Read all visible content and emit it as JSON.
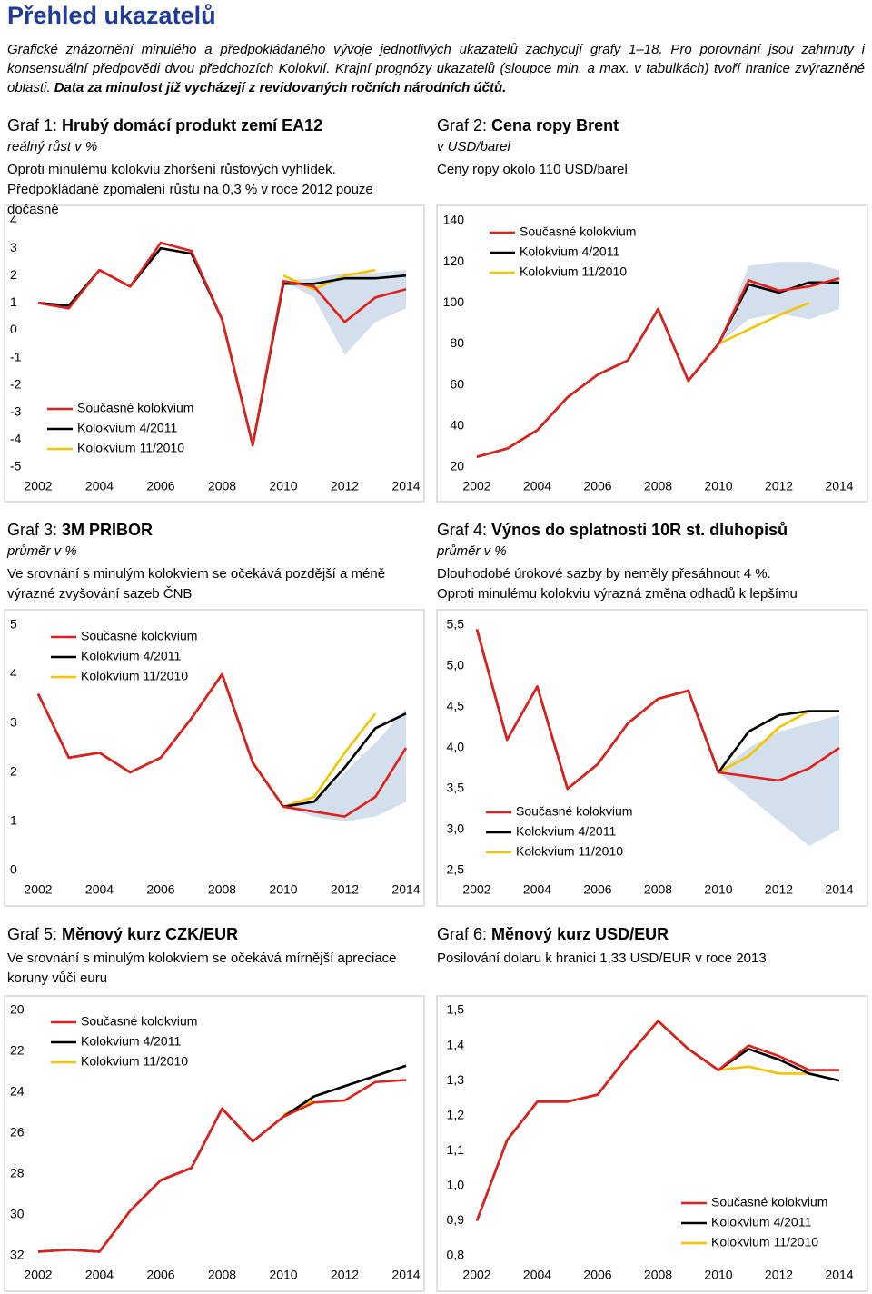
{
  "header": {
    "title": "Přehled ukazatelů",
    "intro": [
      {
        "style": "italic",
        "text": "Grafické znázornění minulého a předpokládaného vývoje jednotlivých ukazatelů zachycují grafy 1–18. Pro porovnání jsou zahrnuty i konsensuální předpovědi dvou předchozích Kolokvií. Krajní prognózy ukazatelů (sloupce min. a max. v tabulkách) tvoří hranice zvýrazněné oblasti. "
      },
      {
        "style": "bold-italic",
        "text": "Data za minulost již vycházejí z revidovaných ročních národních účtů."
      }
    ]
  },
  "chart_data": [
    {
      "type": "line",
      "label": "Graf 1:",
      "title": "Hrubý domácí produkt zemí EA12",
      "subtitle": "reálný růst v %",
      "note": [
        "Oproti minulému kolokviu zhoršení růstových vyhlídek.",
        "Předpokládané zpomalení růstu na 0,3 % v roce 2012 pouze dočasné"
      ],
      "x": [
        2002,
        2003,
        2004,
        2005,
        2006,
        2007,
        2008,
        2009,
        2010,
        2011,
        2012,
        2013,
        2014
      ],
      "xlim": [
        2002,
        2014
      ],
      "xticks": [
        2002,
        2004,
        2006,
        2008,
        2010,
        2012,
        2014
      ],
      "ylim": [
        -5,
        4
      ],
      "yticks": [
        -5,
        -4,
        -3,
        -2,
        -1,
        0,
        1,
        2,
        3,
        4
      ],
      "inverted": false,
      "grid": false,
      "legend": "lower left",
      "band": {
        "color": "#d3dfec",
        "lower": [
          null,
          null,
          null,
          null,
          null,
          null,
          null,
          null,
          1.8,
          1.2,
          -0.9,
          0.3,
          0.8
        ],
        "upper": [
          null,
          null,
          null,
          null,
          null,
          null,
          null,
          null,
          1.8,
          1.9,
          2.1,
          2.1,
          2.2
        ]
      },
      "series": [
        {
          "name": "Současné kolokvium",
          "color": "#e0201b",
          "values": [
            1.0,
            0.8,
            2.2,
            1.6,
            3.2,
            2.9,
            0.4,
            -4.2,
            1.8,
            1.6,
            0.3,
            1.2,
            1.5
          ]
        },
        {
          "name": "Kolokvium 4/2011",
          "color": "#000000",
          "values": [
            1.0,
            0.9,
            2.2,
            1.6,
            3.0,
            2.8,
            0.4,
            -4.2,
            1.7,
            1.7,
            1.9,
            1.9,
            2.0
          ]
        },
        {
          "name": "Kolokvium 11/2010",
          "color": "#f5c400",
          "values": [
            null,
            null,
            null,
            null,
            null,
            null,
            null,
            null,
            2.0,
            1.5,
            2.0,
            2.2,
            null
          ]
        }
      ]
    },
    {
      "type": "line",
      "label": "Graf 2:",
      "title": "Cena ropy Brent",
      "subtitle": "v USD/barel",
      "note": [
        "Ceny ropy okolo 110 USD/barel"
      ],
      "x": [
        2002,
        2003,
        2004,
        2005,
        2006,
        2007,
        2008,
        2009,
        2010,
        2011,
        2012,
        2013,
        2014
      ],
      "xlim": [
        2002,
        2014
      ],
      "xticks": [
        2002,
        2004,
        2006,
        2008,
        2010,
        2012,
        2014
      ],
      "ylim": [
        20,
        140
      ],
      "yticks": [
        20,
        40,
        60,
        80,
        100,
        120,
        140
      ],
      "inverted": false,
      "grid": false,
      "legend": "upper left",
      "band": {
        "color": "#d3dfec",
        "lower": [
          null,
          null,
          null,
          null,
          null,
          null,
          null,
          null,
          80,
          92,
          95,
          92,
          97
        ],
        "upper": [
          null,
          null,
          null,
          null,
          null,
          null,
          null,
          null,
          80,
          118,
          120,
          120,
          116
        ]
      },
      "series": [
        {
          "name": "Současné kolokvium",
          "color": "#e0201b",
          "values": [
            25,
            29,
            38,
            54,
            65,
            72,
            97,
            62,
            80,
            111,
            106,
            108,
            112
          ]
        },
        {
          "name": "Kolokvium 4/2011",
          "color": "#000000",
          "values": [
            25,
            29,
            38,
            54,
            65,
            72,
            97,
            62,
            80,
            109,
            105,
            110,
            110
          ]
        },
        {
          "name": "Kolokvium 11/2010",
          "color": "#f5c400",
          "values": [
            null,
            null,
            null,
            null,
            null,
            null,
            null,
            null,
            80,
            87,
            94,
            100,
            null
          ]
        }
      ]
    },
    {
      "type": "line",
      "label": "Graf 3:",
      "title": "3M PRIBOR",
      "subtitle": "průměr v %",
      "note": [
        "Ve srovnání s minulým kolokviem se očekává pozdější a méně",
        "výrazné zvyšování sazeb ČNB"
      ],
      "x": [
        2002,
        2003,
        2004,
        2005,
        2006,
        2007,
        2008,
        2009,
        2010,
        2011,
        2012,
        2013,
        2014
      ],
      "xlim": [
        2002,
        2014
      ],
      "xticks": [
        2002,
        2004,
        2006,
        2008,
        2010,
        2012,
        2014
      ],
      "ylim": [
        0,
        5
      ],
      "yticks": [
        0,
        1,
        2,
        3,
        4,
        5
      ],
      "inverted": false,
      "grid": false,
      "legend": "upper left",
      "band": {
        "color": "#d3dfec",
        "lower": [
          null,
          null,
          null,
          null,
          null,
          null,
          null,
          null,
          1.3,
          1.1,
          1.0,
          1.1,
          1.4
        ],
        "upper": [
          null,
          null,
          null,
          null,
          null,
          null,
          null,
          null,
          1.3,
          1.4,
          2.0,
          2.6,
          3.3
        ]
      },
      "series": [
        {
          "name": "Současné kolokvium",
          "color": "#e0201b",
          "values": [
            3.6,
            2.3,
            2.4,
            2.0,
            2.3,
            3.1,
            4.0,
            2.2,
            1.3,
            1.2,
            1.1,
            1.5,
            2.5
          ]
        },
        {
          "name": "Kolokvium 4/2011",
          "color": "#000000",
          "values": [
            3.6,
            2.3,
            2.4,
            2.0,
            2.3,
            3.1,
            4.0,
            2.2,
            1.3,
            1.4,
            2.1,
            2.9,
            3.2
          ]
        },
        {
          "name": "Kolokvium 11/2010",
          "color": "#f5c400",
          "values": [
            null,
            null,
            null,
            null,
            null,
            null,
            null,
            null,
            1.3,
            1.5,
            2.4,
            3.2,
            null
          ]
        }
      ]
    },
    {
      "type": "line",
      "label": "Graf 4:",
      "title": "Výnos do splatnosti 10R st. dluhopisů",
      "subtitle": "průměr v %",
      "note": [
        "Dlouhodobé úrokové sazby by neměly přesáhnout 4 %.",
        "Oproti minulému kolokviu výrazná změna odhadů k lepšímu"
      ],
      "x": [
        2002,
        2003,
        2004,
        2005,
        2006,
        2007,
        2008,
        2009,
        2010,
        2011,
        2012,
        2013,
        2014
      ],
      "xlim": [
        2002,
        2014
      ],
      "xticks": [
        2002,
        2004,
        2006,
        2008,
        2010,
        2012,
        2014
      ],
      "ylim": [
        2.5,
        5.5
      ],
      "yticks": [
        {
          "value": 2.5,
          "label": "2,5"
        },
        {
          "value": 3,
          "label": "3,0"
        },
        {
          "value": 3.5,
          "label": "3,5"
        },
        {
          "value": 4,
          "label": "4,0"
        },
        {
          "value": 4.5,
          "label": "4,5"
        },
        {
          "value": 5,
          "label": "5,0"
        },
        {
          "value": 5.5,
          "label": "5,5"
        }
      ],
      "inverted": false,
      "grid": false,
      "legend": "lower left",
      "band": {
        "color": "#d3dfec",
        "lower": [
          null,
          null,
          null,
          null,
          null,
          null,
          null,
          null,
          3.7,
          3.4,
          3.1,
          2.8,
          3.0
        ],
        "upper": [
          null,
          null,
          null,
          null,
          null,
          null,
          null,
          null,
          3.7,
          4.0,
          4.2,
          4.3,
          4.4
        ]
      },
      "series": [
        {
          "name": "Současné kolokvium",
          "color": "#e0201b",
          "values": [
            5.45,
            4.1,
            4.75,
            3.5,
            3.8,
            4.3,
            4.6,
            4.7,
            3.7,
            3.65,
            3.6,
            3.75,
            4.0
          ]
        },
        {
          "name": "Kolokvium 4/2011",
          "color": "#000000",
          "values": [
            5.45,
            4.1,
            4.75,
            3.5,
            3.8,
            4.3,
            4.6,
            4.7,
            3.7,
            4.2,
            4.4,
            4.45,
            4.45
          ]
        },
        {
          "name": "Kolokvium 11/2010",
          "color": "#f5c400",
          "values": [
            null,
            null,
            null,
            null,
            null,
            null,
            null,
            null,
            3.7,
            3.9,
            4.25,
            4.45,
            null
          ]
        }
      ]
    },
    {
      "type": "line",
      "label": "Graf 5:",
      "title": "Měnový kurz CZK/EUR",
      "note": [
        "Ve srovnání s minulým kolokviem se očekává mírnější apreciace",
        "koruny vůči euru"
      ],
      "x": [
        2002,
        2003,
        2004,
        2005,
        2006,
        2007,
        2008,
        2009,
        2010,
        2011,
        2012,
        2013,
        2014
      ],
      "xlim": [
        2002,
        2014
      ],
      "xticks": [
        2002,
        2004,
        2006,
        2008,
        2010,
        2012,
        2014
      ],
      "ylim": [
        20,
        32
      ],
      "yticks": [
        20,
        22,
        24,
        26,
        28,
        30,
        32
      ],
      "inverted": true,
      "grid": false,
      "legend": "upper left",
      "series": [
        {
          "name": "Současné kolokvium",
          "color": "#e0201b",
          "values": [
            31.8,
            31.7,
            31.8,
            29.8,
            28.3,
            27.7,
            24.8,
            26.4,
            25.2,
            24.5,
            24.4,
            23.5,
            23.4
          ]
        },
        {
          "name": "Kolokvium 4/2011",
          "color": "#000000",
          "values": [
            31.8,
            31.7,
            31.8,
            29.8,
            28.3,
            27.7,
            24.8,
            26.4,
            25.2,
            24.2,
            23.7,
            23.2,
            22.7
          ]
        },
        {
          "name": "Kolokvium 11/2010",
          "color": "#f5c400",
          "values": [
            null,
            null,
            null,
            null,
            null,
            null,
            null,
            null,
            25.1,
            24.4,
            null,
            null,
            null
          ]
        }
      ]
    },
    {
      "type": "line",
      "label": "Graf 6:",
      "title": "Měnový kurz USD/EUR",
      "note": [
        "Posilování dolaru k hranici 1,33 USD/EUR v roce 2013"
      ],
      "x": [
        2002,
        2003,
        2004,
        2005,
        2006,
        2007,
        2008,
        2009,
        2010,
        2011,
        2012,
        2013,
        2014
      ],
      "xlim": [
        2002,
        2014
      ],
      "xticks": [
        2002,
        2004,
        2006,
        2008,
        2010,
        2012,
        2014
      ],
      "ylim": [
        0.8,
        1.5
      ],
      "yticks": [
        {
          "value": 0.8,
          "label": "0,8"
        },
        {
          "value": 0.9,
          "label": "0,9"
        },
        {
          "value": 1.0,
          "label": "1,0"
        },
        {
          "value": 1.1,
          "label": "1,1"
        },
        {
          "value": 1.2,
          "label": "1,2"
        },
        {
          "value": 1.3,
          "label": "1,3"
        },
        {
          "value": 1.4,
          "label": "1,4"
        },
        {
          "value": 1.5,
          "label": "1,5"
        }
      ],
      "inverted": false,
      "grid": false,
      "legend": "lower right",
      "series": [
        {
          "name": "Současné kolokvium",
          "color": "#e0201b",
          "values": [
            0.9,
            1.13,
            1.24,
            1.24,
            1.26,
            1.37,
            1.47,
            1.39,
            1.33,
            1.4,
            1.37,
            1.33,
            1.33
          ]
        },
        {
          "name": "Kolokvium 4/2011",
          "color": "#000000",
          "values": [
            0.9,
            1.13,
            1.24,
            1.24,
            1.26,
            1.37,
            1.47,
            1.39,
            1.33,
            1.39,
            1.36,
            1.32,
            1.3
          ]
        },
        {
          "name": "Kolokvium 11/2010",
          "color": "#f5c400",
          "values": [
            null,
            null,
            null,
            null,
            null,
            null,
            null,
            null,
            1.33,
            1.34,
            1.32,
            1.32,
            null
          ]
        }
      ]
    }
  ]
}
